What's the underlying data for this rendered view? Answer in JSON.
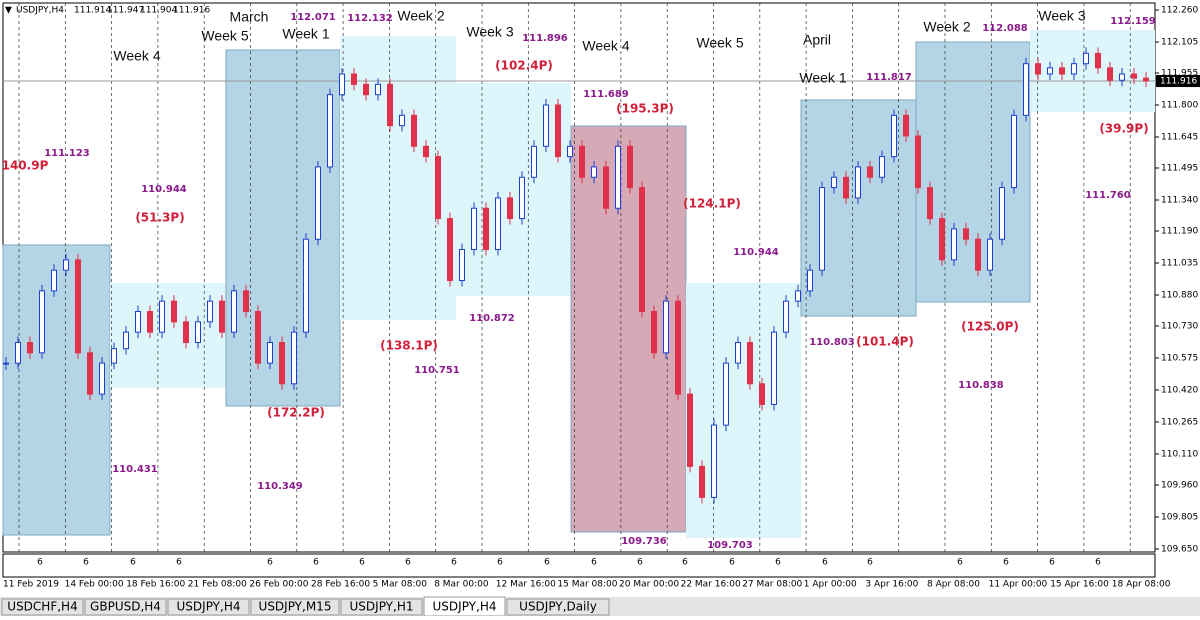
{
  "header": {
    "symbol": "USDJPY,H4",
    "quotes": [
      "111.914",
      "111.947",
      "111.904",
      "111.916"
    ]
  },
  "chart": {
    "type": "candlestick",
    "up_color": "#1f3fd1",
    "down_color": "#e0304a",
    "closes": [
      110.55,
      110.65,
      110.6,
      110.9,
      111.0,
      111.05,
      110.6,
      110.4,
      110.55,
      110.62,
      110.7,
      110.8,
      110.7,
      110.85,
      110.75,
      110.65,
      110.75,
      110.85,
      110.7,
      110.9,
      110.8,
      110.55,
      110.65,
      110.45,
      110.7,
      111.15,
      111.5,
      111.85,
      111.95,
      111.9,
      111.85,
      111.9,
      111.7,
      111.75,
      111.6,
      111.55,
      111.25,
      110.95,
      111.1,
      111.3,
      111.1,
      111.35,
      111.25,
      111.45,
      111.6,
      111.8,
      111.55,
      111.6,
      111.45,
      111.5,
      111.3,
      111.6,
      111.4,
      110.8,
      110.6,
      110.85,
      110.4,
      110.05,
      109.9,
      110.25,
      110.55,
      110.65,
      110.45,
      110.35,
      110.7,
      110.85,
      110.9,
      111.0,
      111.4,
      111.45,
      111.35,
      111.5,
      111.45,
      111.55,
      111.75,
      111.65,
      111.4,
      111.25,
      111.05,
      111.2,
      111.15,
      111.0,
      111.15,
      111.4,
      111.75,
      112.0,
      111.95,
      111.98,
      111.95,
      112.0,
      112.05,
      111.98,
      111.92,
      111.95,
      111.93,
      111.916
    ],
    "ylim": [
      109.65,
      112.26
    ],
    "yticks": [
      {
        "value": 112.26,
        "label": "112.260"
      },
      112.105,
      111.955,
      {
        "value": 111.8,
        "label": "111.800"
      },
      111.645,
      111.495,
      {
        "value": 111.34,
        "label": "111.340"
      },
      {
        "value": 111.19,
        "label": "111.190"
      },
      111.035,
      {
        "value": 110.88,
        "label": "110.880"
      },
      {
        "value": 110.73,
        "label": "110.730"
      },
      110.575,
      {
        "value": 110.42,
        "label": "110.420"
      },
      110.265,
      {
        "value": 110.11,
        "label": "110.110"
      },
      {
        "value": 109.96,
        "label": "109.960"
      },
      109.805,
      {
        "value": 109.65,
        "label": "109.650"
      }
    ],
    "current_price": {
      "value": 111.916,
      "label": "111.916"
    },
    "xticks": [
      "11 Feb 2019",
      "14 Feb 00:00",
      "18 Feb 16:00",
      "21 Feb 08:00",
      "26 Feb 00:00",
      "28 Feb 16:00",
      "5 Mar 08:00",
      "8 Mar 00:00",
      "12 Mar 16:00",
      "15 Mar 08:00",
      "20 Mar 00:00",
      "22 Mar 16:00",
      "27 Mar 08:00",
      "1 Apr 00:00",
      "3 Apr 16:00",
      "8 Apr 08:00",
      "11 Apr 00:00",
      "15 Apr 16:00",
      "18 Apr 08:00"
    ],
    "week_labels": [
      "Week 4",
      "March",
      "Week 5",
      "Week 1",
      "Week 2",
      "Week 3",
      "Week 4",
      "Week 5",
      "April",
      "Week 1",
      "Week 2",
      "Week 3"
    ],
    "price_labels": [
      "111.123",
      "110.944",
      "110.431",
      "110.349",
      "112.071",
      "112.132",
      "111.896",
      "110.751",
      "110.872",
      "111.689",
      "109.736",
      "109.703",
      "110.944",
      "110.803",
      "111.817",
      "110.838",
      "112.088",
      "112.159",
      "111.760"
    ],
    "pip_labels": [
      "140.9P",
      "(51.3P)",
      "(172.2P)",
      "(138.1P)",
      "(102.4P)",
      "(195.3P)",
      "(124.1P)",
      "(101.4P)",
      "(125.0P)",
      "(39.9P)"
    ],
    "indicator_labels": [
      "6",
      "6",
      "6",
      "6",
      "6",
      "6",
      "6",
      "6",
      "6",
      "6",
      "6",
      "6",
      "6",
      "6",
      "6",
      "6",
      "6",
      "6",
      "6",
      "6",
      "6",
      "6"
    ]
  },
  "tabs": [
    "USDCHF,H4",
    "GBPUSD,H4",
    "USDJPY,H4",
    "USDJPY,M15",
    "USDJPY,H1",
    "USDJPY,H4",
    "USDJPY,Daily"
  ]
}
